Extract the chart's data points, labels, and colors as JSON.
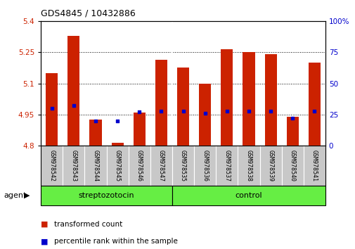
{
  "title": "GDS4845 / 10432886",
  "samples": [
    "GSM978542",
    "GSM978543",
    "GSM978544",
    "GSM978545",
    "GSM978546",
    "GSM978547",
    "GSM978535",
    "GSM978536",
    "GSM978537",
    "GSM978538",
    "GSM978539",
    "GSM978540",
    "GSM978541"
  ],
  "transformed_count": [
    5.15,
    5.33,
    4.925,
    4.815,
    4.96,
    5.215,
    5.175,
    5.1,
    5.265,
    5.25,
    5.24,
    4.94,
    5.2
  ],
  "percentile_rank": [
    30,
    32,
    20,
    20,
    27,
    28,
    28,
    26,
    28,
    28,
    28,
    22,
    28
  ],
  "bar_bottom": 4.8,
  "ylim_left": [
    4.8,
    5.4
  ],
  "ylim_right": [
    0,
    100
  ],
  "yticks_left": [
    4.8,
    4.95,
    5.1,
    5.25,
    5.4
  ],
  "yticks_right": [
    0,
    25,
    50,
    75,
    100
  ],
  "ytick_labels_left": [
    "4.8",
    "4.95",
    "5.1",
    "5.25",
    "5.4"
  ],
  "ytick_labels_right": [
    "0",
    "25",
    "50",
    "75",
    "100%"
  ],
  "gridlines": [
    4.95,
    5.1,
    5.25
  ],
  "bar_color": "#cc2200",
  "dot_color": "#0000cc",
  "group1_label": "streptozotocin",
  "group2_label": "control",
  "group1_count": 6,
  "group2_count": 7,
  "agent_label": "agent",
  "legend_bar_label": "transformed count",
  "legend_dot_label": "percentile rank within the sample",
  "tick_bg_color": "#c8c8c8",
  "group_bg_color": "#66ee44",
  "separator_index": 6
}
